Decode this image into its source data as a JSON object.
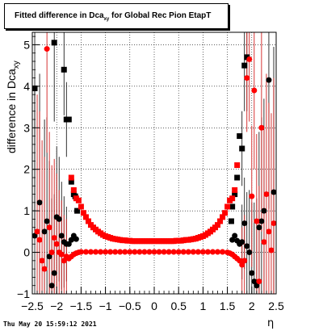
{
  "chart_data": {
    "type": "scatter",
    "title_main": "Fitted difference in Dca",
    "title_sub": "xy",
    "title_rest": "  for Global Rec Pion EtapT",
    "ylabel_main": "difference in Dca",
    "ylabel_sub": "xy",
    "xlabel": "η",
    "xlim": [
      -2.5,
      2.5
    ],
    "ylim": [
      -1,
      5.3
    ],
    "xticks": [
      -2.5,
      -2,
      -1.5,
      -1,
      -0.5,
      0,
      0.5,
      1,
      1.5,
      2,
      2.5
    ],
    "xtick_labels": [
      "−2.5",
      "−2",
      "−1.5",
      "−1",
      "−0.5",
      "0",
      "0.5",
      "1",
      "1.5",
      "2",
      "2.5"
    ],
    "yticks": [
      -1,
      0,
      1,
      2,
      3,
      4,
      5
    ],
    "ytick_labels": [
      "−1",
      "0",
      "1",
      "2",
      "3",
      "4",
      "5"
    ],
    "grid": true,
    "colors": {
      "series_black": "#000000",
      "series_red": "#ff0000",
      "errbar_red": "#cc0000"
    },
    "series": [
      {
        "marker": "square",
        "color": "#000000",
        "points": [
          [
            -2.45,
            3.95
          ],
          [
            -2.05,
            5.05
          ],
          [
            -1.85,
            4.4
          ],
          [
            -1.8,
            3.2
          ],
          [
            -1.75,
            3.2
          ],
          [
            -1.7,
            1.7
          ],
          [
            -1.65,
            1.4
          ],
          [
            -1.62,
            1.35
          ],
          [
            -1.58,
            1.0
          ],
          [
            1.58,
            0.75
          ],
          [
            1.6,
            1.1
          ],
          [
            1.65,
            1.4
          ],
          [
            1.7,
            1.8
          ],
          [
            1.75,
            2.8
          ],
          [
            1.8,
            2.5
          ],
          [
            1.85,
            4.5
          ],
          [
            1.9,
            4.7
          ]
        ]
      },
      {
        "marker": "circle",
        "color": "#000000",
        "points": [
          [
            -2.45,
            0.4
          ],
          [
            -2.35,
            1.2
          ],
          [
            -2.25,
            0.5
          ],
          [
            -2.2,
            0.75
          ],
          [
            -2.15,
            -0.1
          ],
          [
            -2.1,
            -0.8
          ],
          [
            -2.05,
            -0.5
          ],
          [
            -2.0,
            0.85
          ],
          [
            -1.95,
            0.8
          ],
          [
            -1.9,
            0.4
          ],
          [
            -1.85,
            0.25
          ],
          [
            -1.8,
            0.2
          ],
          [
            -1.75,
            0.2
          ],
          [
            -1.7,
            0.3
          ],
          [
            -1.65,
            0.4
          ],
          [
            -1.6,
            0.32
          ],
          [
            1.6,
            0.3
          ],
          [
            1.65,
            0.4
          ],
          [
            1.7,
            0.28
          ],
          [
            1.75,
            0.2
          ],
          [
            1.8,
            0.25
          ],
          [
            1.85,
            0.7
          ],
          [
            1.9,
            0.15
          ],
          [
            1.95,
            0.0
          ],
          [
            2.0,
            -0.5
          ],
          [
            2.05,
            -0.7
          ],
          [
            2.1,
            -0.8
          ],
          [
            2.15,
            0.6
          ],
          [
            2.2,
            0.75
          ],
          [
            2.25,
            1.0
          ],
          [
            2.35,
            4.15
          ],
          [
            2.45,
            1.45
          ]
        ]
      },
      {
        "marker": "square",
        "color": "#ff0000",
        "points": [
          [
            -1.55,
            1.25
          ],
          [
            -1.5,
            1.1
          ],
          [
            -1.45,
            0.95
          ],
          [
            -1.4,
            0.85
          ],
          [
            -1.35,
            0.75
          ],
          [
            -1.3,
            0.66
          ],
          [
            -1.25,
            0.6
          ],
          [
            -1.2,
            0.55
          ],
          [
            -1.15,
            0.5
          ],
          [
            -1.1,
            0.46
          ],
          [
            -1.05,
            0.42
          ],
          [
            -1.0,
            0.39
          ],
          [
            -0.95,
            0.37
          ],
          [
            -0.9,
            0.35
          ],
          [
            -0.85,
            0.33
          ],
          [
            -0.8,
            0.32
          ],
          [
            -0.75,
            0.31
          ],
          [
            -0.7,
            0.3
          ],
          [
            -0.65,
            0.29
          ],
          [
            -0.6,
            0.29
          ],
          [
            -0.55,
            0.28
          ],
          [
            -0.5,
            0.28
          ],
          [
            -0.45,
            0.27
          ],
          [
            -0.4,
            0.27
          ],
          [
            -0.35,
            0.27
          ],
          [
            -0.3,
            0.27
          ],
          [
            -0.25,
            0.27
          ],
          [
            -0.2,
            0.27
          ],
          [
            -0.15,
            0.27
          ],
          [
            -0.1,
            0.27
          ],
          [
            -0.05,
            0.27
          ],
          [
            0.0,
            0.27
          ],
          [
            0.05,
            0.27
          ],
          [
            0.1,
            0.27
          ],
          [
            0.15,
            0.27
          ],
          [
            0.2,
            0.27
          ],
          [
            0.25,
            0.27
          ],
          [
            0.3,
            0.27
          ],
          [
            0.35,
            0.27
          ],
          [
            0.4,
            0.27
          ],
          [
            0.45,
            0.28
          ],
          [
            0.5,
            0.28
          ],
          [
            0.55,
            0.28
          ],
          [
            0.6,
            0.29
          ],
          [
            0.65,
            0.3
          ],
          [
            0.7,
            0.3
          ],
          [
            0.75,
            0.31
          ],
          [
            0.8,
            0.32
          ],
          [
            0.85,
            0.33
          ],
          [
            0.9,
            0.35
          ],
          [
            0.95,
            0.37
          ],
          [
            1.0,
            0.39
          ],
          [
            1.05,
            0.42
          ],
          [
            1.1,
            0.46
          ],
          [
            1.15,
            0.5
          ],
          [
            1.2,
            0.55
          ],
          [
            1.25,
            0.6
          ],
          [
            1.3,
            0.66
          ],
          [
            1.35,
            0.75
          ],
          [
            1.4,
            0.85
          ],
          [
            1.45,
            0.95
          ],
          [
            1.5,
            1.1
          ],
          [
            1.55,
            1.25
          ],
          [
            -1.6,
            1.3
          ],
          [
            -1.65,
            1.5
          ],
          [
            -1.7,
            1.8
          ],
          [
            1.6,
            1.3
          ],
          [
            1.65,
            1.5
          ],
          [
            1.7,
            2.1
          ]
        ]
      },
      {
        "marker": "circle",
        "color": "#ff0000",
        "points": [
          [
            -2.4,
            0.5
          ],
          [
            -2.35,
            0.3
          ],
          [
            -2.3,
            -0.2
          ],
          [
            -2.25,
            -0.4
          ],
          [
            -2.2,
            4.9
          ],
          [
            -2.15,
            0.6
          ],
          [
            -2.1,
            0.0
          ],
          [
            -2.05,
            0.35
          ],
          [
            -2.0,
            0.2
          ],
          [
            -1.95,
            0.0
          ],
          [
            -1.9,
            -0.05
          ],
          [
            -1.85,
            -0.2
          ],
          [
            -1.8,
            -0.1
          ],
          [
            -1.75,
            -0.15
          ],
          [
            -1.7,
            -0.1
          ],
          [
            -1.65,
            -0.05
          ],
          [
            -1.6,
            -0.02
          ],
          [
            -1.55,
            0.0
          ],
          [
            -1.5,
            0.01
          ],
          [
            -1.4,
            0.01
          ],
          [
            -1.3,
            0.01
          ],
          [
            -1.2,
            0.01
          ],
          [
            -1.1,
            0.01
          ],
          [
            -1.0,
            0.01
          ],
          [
            -0.9,
            0.01
          ],
          [
            -0.8,
            0.01
          ],
          [
            -0.7,
            0.01
          ],
          [
            -0.6,
            0.01
          ],
          [
            -0.5,
            0.01
          ],
          [
            -0.4,
            0.01
          ],
          [
            -0.3,
            0.01
          ],
          [
            -0.2,
            0.01
          ],
          [
            -0.1,
            0.01
          ],
          [
            0.0,
            0.01
          ],
          [
            0.1,
            0.01
          ],
          [
            0.2,
            0.01
          ],
          [
            0.3,
            0.01
          ],
          [
            0.4,
            0.01
          ],
          [
            0.5,
            0.01
          ],
          [
            0.6,
            0.01
          ],
          [
            0.7,
            0.01
          ],
          [
            0.8,
            0.01
          ],
          [
            0.9,
            0.01
          ],
          [
            1.0,
            0.01
          ],
          [
            1.1,
            0.01
          ],
          [
            1.2,
            0.01
          ],
          [
            1.3,
            0.01
          ],
          [
            1.4,
            0.01
          ],
          [
            1.5,
            0.0
          ],
          [
            1.55,
            -0.02
          ],
          [
            1.6,
            -0.05
          ],
          [
            1.65,
            -0.1
          ],
          [
            1.7,
            -0.15
          ],
          [
            1.75,
            -0.2
          ],
          [
            1.8,
            -0.3
          ],
          [
            1.85,
            -0.2
          ],
          [
            1.9,
            4.2
          ],
          [
            1.95,
            4.65
          ],
          [
            2.0,
            1.35
          ],
          [
            2.05,
            3.9
          ],
          [
            2.1,
            0.75
          ],
          [
            2.15,
            -0.7
          ],
          [
            2.2,
            3.0
          ],
          [
            2.25,
            0.25
          ],
          [
            2.3,
            1.4
          ],
          [
            2.35,
            0.5
          ],
          [
            2.4,
            0.05
          ],
          [
            2.45,
            0.7
          ]
        ]
      }
    ]
  },
  "footer": {
    "timestamp": "Thu May 20 15:59:12 2021"
  }
}
